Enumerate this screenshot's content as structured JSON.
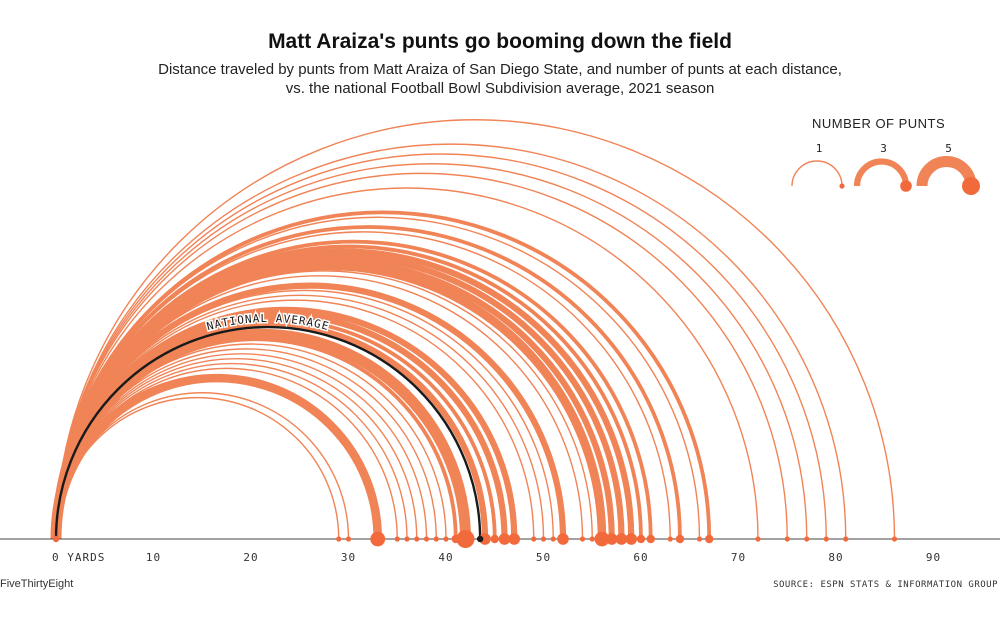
{
  "header": {
    "title": "Matt Araiza's punts go booming down the field",
    "subtitle_line1": "Distance traveled by punts from Matt Araiza of San Diego State, and number of punts at each distance,",
    "subtitle_line2": "vs. the national Football Bowl Subdivision average, 2021 season"
  },
  "legend": {
    "title": "NUMBER OF PUNTS",
    "items": [
      {
        "label": "1",
        "count": 1
      },
      {
        "label": "3",
        "count": 3
      },
      {
        "label": "5",
        "count": 5
      }
    ]
  },
  "footer": {
    "brand": "FiveThirtyEight",
    "source": "SOURCE: ESPN STATS & INFORMATION GROUP"
  },
  "colors": {
    "arc": "#f08457",
    "dot": "#f26a3b",
    "average": "#1a1a1a",
    "baseline": "#444444"
  },
  "chart_data": {
    "type": "arc",
    "x_axis": {
      "ticks": [
        0,
        10,
        20,
        30,
        40,
        50,
        60,
        70,
        80,
        90
      ],
      "tick_labels": [
        "0 YARDS",
        "10",
        "20",
        "30",
        "40",
        "50",
        "60",
        "70",
        "80",
        "90"
      ],
      "range": [
        0,
        95
      ]
    },
    "national_average": {
      "label": "NATIONAL AVERAGE",
      "distance": 43.5
    },
    "punts": [
      {
        "distance": 29,
        "count": 1
      },
      {
        "distance": 30,
        "count": 1
      },
      {
        "distance": 33,
        "count": 4
      },
      {
        "distance": 35,
        "count": 1
      },
      {
        "distance": 36,
        "count": 1
      },
      {
        "distance": 37,
        "count": 1
      },
      {
        "distance": 38,
        "count": 1
      },
      {
        "distance": 39,
        "count": 1
      },
      {
        "distance": 40,
        "count": 1
      },
      {
        "distance": 41,
        "count": 2
      },
      {
        "distance": 42,
        "count": 5
      },
      {
        "distance": 44,
        "count": 3
      },
      {
        "distance": 45,
        "count": 2
      },
      {
        "distance": 46,
        "count": 3
      },
      {
        "distance": 47,
        "count": 3
      },
      {
        "distance": 49,
        "count": 1
      },
      {
        "distance": 50,
        "count": 1
      },
      {
        "distance": 51,
        "count": 1
      },
      {
        "distance": 52,
        "count": 3
      },
      {
        "distance": 54,
        "count": 1
      },
      {
        "distance": 55,
        "count": 1
      },
      {
        "distance": 56,
        "count": 4
      },
      {
        "distance": 57,
        "count": 3
      },
      {
        "distance": 58,
        "count": 3
      },
      {
        "distance": 59,
        "count": 3
      },
      {
        "distance": 60,
        "count": 2
      },
      {
        "distance": 61,
        "count": 2
      },
      {
        "distance": 63,
        "count": 1
      },
      {
        "distance": 64,
        "count": 2
      },
      {
        "distance": 66,
        "count": 1
      },
      {
        "distance": 67,
        "count": 2
      },
      {
        "distance": 72,
        "count": 1
      },
      {
        "distance": 75,
        "count": 1
      },
      {
        "distance": 77,
        "count": 1
      },
      {
        "distance": 79,
        "count": 1
      },
      {
        "distance": 81,
        "count": 1
      },
      {
        "distance": 86,
        "count": 1
      }
    ]
  }
}
